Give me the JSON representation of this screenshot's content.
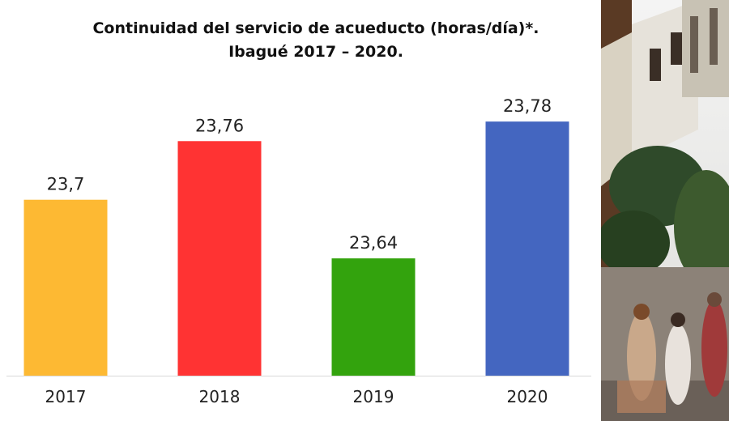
{
  "chart_data": {
    "type": "bar",
    "title": "Continuidad del servicio de acueducto (horas/día)*.",
    "subtitle": "Ibagué 2017 – 2020.",
    "categories": [
      "2017",
      "2018",
      "2019",
      "2020"
    ],
    "values": [
      23.7,
      23.76,
      23.64,
      23.78
    ],
    "data_labels": [
      "23,7",
      "23,76",
      "23,64",
      "23,78"
    ],
    "bar_colors": [
      "#FDB933",
      "#FF3333",
      "#33A30D",
      "#4466C0"
    ],
    "ylim": [
      23.52,
      23.8
    ],
    "grid": false,
    "legend": "none"
  },
  "photo": {
    "description_icon": "street-photo"
  }
}
